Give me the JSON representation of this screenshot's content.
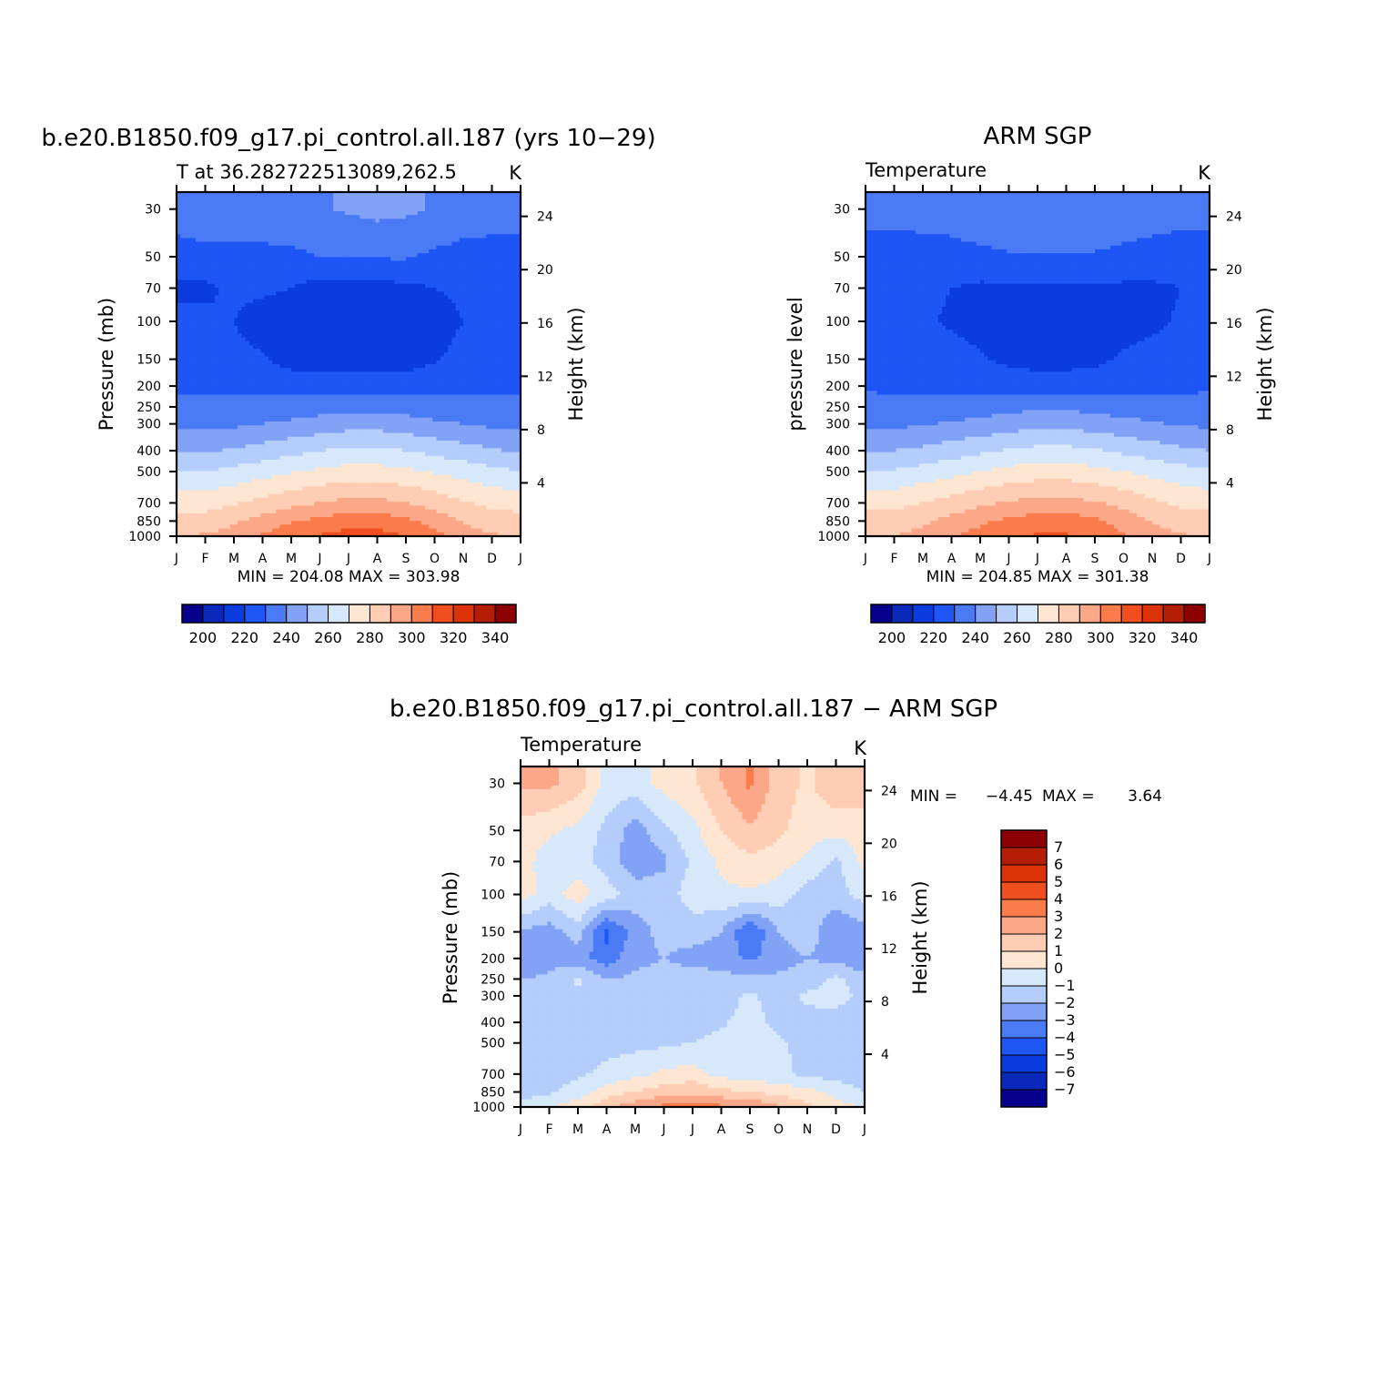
{
  "palette": [
    "#06008c",
    "#0a28b9",
    "#0a3ce0",
    "#1e55f5",
    "#4b7af5",
    "#82a3f5",
    "#b4cdfa",
    "#d7e8fa",
    "#ffe6d2",
    "#ffcdb4",
    "#fca888",
    "#fa7b4c",
    "#f04e1e",
    "#dc3208",
    "#b41e05",
    "#8c0004"
  ],
  "chart_data": [
    {
      "id": "model",
      "type": "heatmap",
      "title": "b.e20.B1850.f09_g17.pi_control.all.187 (yrs 10−29)",
      "subtitle_left": "T at 36.282722513089,262.5",
      "subtitle_right": "K",
      "ylabel": "Pressure (mb)",
      "y2label": "Height (km)",
      "x_ticks": [
        "J",
        "F",
        "M",
        "A",
        "M",
        "J",
        "J",
        "A",
        "S",
        "O",
        "N",
        "D",
        "J"
      ],
      "y_ticks": [
        "30",
        "50",
        "70",
        "100",
        "150",
        "200",
        "250",
        "300",
        "400",
        "500",
        "700",
        "850",
        "1000"
      ],
      "y2_ticks": [
        "24",
        "20",
        "16",
        "12",
        "8",
        "4"
      ],
      "stats": "MIN = 204.08 MAX = 303.98",
      "colorbar_labels": [
        "200",
        "220",
        "240",
        "260",
        "280",
        "300",
        "320",
        "340"
      ],
      "levels": [
        {
          "pressure": 30,
          "values": [
            225,
            225,
            225,
            225,
            227,
            229,
            231,
            233,
            232,
            229,
            225,
            225,
            225
          ]
        },
        {
          "pressure": 50,
          "values": [
            216,
            218,
            218,
            218,
            218,
            220,
            221,
            221,
            221,
            218,
            217,
            216,
            216
          ]
        },
        {
          "pressure": 70,
          "values": [
            208,
            208,
            212,
            212,
            210,
            206,
            206,
            206,
            208,
            210,
            212,
            212,
            212
          ]
        },
        {
          "pressure": 100,
          "values": [
            212,
            212,
            210,
            205,
            203,
            203,
            203,
            203,
            203,
            206,
            210,
            212,
            213
          ]
        },
        {
          "pressure": 150,
          "values": [
            215,
            215,
            213,
            211,
            206,
            205,
            205,
            205,
            205,
            209,
            213,
            215,
            216
          ]
        },
        {
          "pressure": 200,
          "values": [
            218,
            218,
            218,
            217,
            216,
            215,
            215,
            215,
            216,
            217,
            218,
            219,
            219
          ]
        },
        {
          "pressure": 250,
          "values": [
            222,
            222,
            222,
            223,
            224,
            226,
            227,
            227,
            226,
            224,
            223,
            222,
            222
          ]
        },
        {
          "pressure": 300,
          "values": [
            227,
            227,
            228,
            230,
            232,
            234,
            236,
            236,
            234,
            232,
            230,
            228,
            227
          ]
        },
        {
          "pressure": 400,
          "values": [
            239,
            239,
            241,
            244,
            247,
            250,
            252,
            252,
            250,
            247,
            244,
            241,
            239
          ]
        },
        {
          "pressure": 500,
          "values": [
            250,
            250,
            253,
            256,
            259,
            262,
            264,
            264,
            262,
            259,
            256,
            253,
            250
          ]
        },
        {
          "pressure": 700,
          "values": [
            266,
            266,
            269,
            273,
            277,
            280,
            283,
            283,
            280,
            276,
            271,
            267,
            266
          ]
        },
        {
          "pressure": 850,
          "values": [
            274,
            274,
            278,
            284,
            289,
            293,
            296,
            296,
            292,
            286,
            279,
            275,
            274
          ]
        },
        {
          "pressure": 1000,
          "values": [
            280,
            281,
            285,
            291,
            297,
            301,
            304,
            304,
            300,
            293,
            285,
            281,
            280
          ]
        }
      ]
    },
    {
      "id": "obs",
      "type": "heatmap",
      "title": "ARM SGP",
      "subtitle_left": "Temperature",
      "subtitle_right": "K",
      "ylabel": "pressure level",
      "y2label": "Height (km)",
      "x_ticks": [
        "J",
        "F",
        "M",
        "A",
        "M",
        "J",
        "J",
        "A",
        "S",
        "O",
        "N",
        "D",
        "J"
      ],
      "y_ticks": [
        "30",
        "50",
        "70",
        "100",
        "150",
        "200",
        "250",
        "300",
        "400",
        "500",
        "700",
        "850",
        "1000"
      ],
      "y2_ticks": [
        "24",
        "20",
        "16",
        "12",
        "8",
        "4"
      ],
      "stats": "MIN = 204.85 MAX = 301.38",
      "colorbar_labels": [
        "200",
        "220",
        "240",
        "260",
        "280",
        "300",
        "320",
        "340"
      ],
      "levels": [
        {
          "pressure": 30,
          "values": [
            224,
            224,
            224,
            224,
            226,
            228,
            230,
            229,
            228,
            225,
            224,
            224,
            224
          ]
        },
        {
          "pressure": 50,
          "values": [
            215,
            215,
            216,
            217,
            218,
            219,
            219,
            219,
            219,
            218,
            217,
            215,
            215
          ]
        },
        {
          "pressure": 70,
          "values": [
            210,
            210,
            212,
            210,
            208,
            208,
            208,
            208,
            208,
            208,
            208,
            210,
            212
          ]
        },
        {
          "pressure": 100,
          "values": [
            213,
            212,
            211,
            209,
            207,
            206,
            205,
            205,
            206,
            207,
            208,
            211,
            213
          ]
        },
        {
          "pressure": 150,
          "values": [
            216,
            215,
            214,
            213,
            211,
            208,
            207,
            207,
            208,
            211,
            213,
            215,
            216
          ]
        },
        {
          "pressure": 200,
          "values": [
            219,
            218,
            218,
            217,
            216,
            215,
            214,
            214,
            215,
            216,
            217,
            218,
            219
          ]
        },
        {
          "pressure": 250,
          "values": [
            223,
            223,
            223,
            224,
            225,
            227,
            228,
            228,
            227,
            225,
            224,
            223,
            223
          ]
        },
        {
          "pressure": 300,
          "values": [
            228,
            228,
            229,
            231,
            233,
            235,
            237,
            237,
            235,
            233,
            231,
            229,
            228
          ]
        },
        {
          "pressure": 400,
          "values": [
            240,
            240,
            242,
            245,
            248,
            251,
            253,
            253,
            251,
            248,
            245,
            242,
            240
          ]
        },
        {
          "pressure": 500,
          "values": [
            251,
            251,
            254,
            257,
            260,
            263,
            265,
            265,
            263,
            260,
            257,
            254,
            251
          ]
        },
        {
          "pressure": 700,
          "values": [
            267,
            267,
            270,
            274,
            278,
            281,
            283,
            283,
            281,
            277,
            272,
            268,
            267
          ]
        },
        {
          "pressure": 850,
          "values": [
            274,
            274,
            278,
            283,
            288,
            292,
            295,
            295,
            292,
            286,
            279,
            275,
            274
          ]
        },
        {
          "pressure": 1000,
          "values": [
            280,
            280,
            284,
            289,
            294,
            298,
            301,
            301,
            298,
            291,
            284,
            281,
            280
          ]
        }
      ]
    },
    {
      "id": "diff",
      "type": "heatmap",
      "title": "b.e20.B1850.f09_g17.pi_control.all.187 − ARM SGP",
      "subtitle_left": "Temperature",
      "subtitle_right": "K",
      "ylabel": "Pressure (mb)",
      "y2label": "Height (km)",
      "x_ticks": [
        "J",
        "F",
        "M",
        "A",
        "M",
        "J",
        "J",
        "A",
        "S",
        "O",
        "N",
        "D",
        "J"
      ],
      "y_ticks": [
        "30",
        "50",
        "70",
        "100",
        "150",
        "200",
        "250",
        "300",
        "400",
        "500",
        "700",
        "850",
        "1000"
      ],
      "y2_ticks": [
        "24",
        "20",
        "16",
        "12",
        "8",
        "4"
      ],
      "stats_min_label": "MIN =",
      "stats_min": "−4.45",
      "stats_max_label": "MAX =",
      "stats_max": "3.64",
      "colorbar_labels": [
        "7",
        "6",
        "5",
        "4",
        "3",
        "2",
        "1",
        "0",
        "−1",
        "−2",
        "−3",
        "−4",
        "−5",
        "−6",
        "−7"
      ],
      "levels": [
        {
          "pressure": 30,
          "values": [
            2.2,
            2.2,
            1.5,
            -0.3,
            -0.5,
            0.4,
            0.8,
            2.0,
            3.2,
            1.5,
            0.8,
            1.8,
            1.5
          ]
        },
        {
          "pressure": 50,
          "values": [
            0.5,
            0.2,
            -0.3,
            -1.3,
            -2.5,
            -1.3,
            -0.3,
            1.0,
            1.8,
            1.2,
            0.5,
            0.3,
            0.5
          ]
        },
        {
          "pressure": 70,
          "values": [
            0.5,
            -0.6,
            -0.5,
            -1.5,
            -2.6,
            -2.2,
            -0.8,
            0.2,
            0.8,
            0.5,
            -0.3,
            -1.2,
            0.3
          ]
        },
        {
          "pressure": 100,
          "values": [
            0.5,
            -0.5,
            0.5,
            -0.5,
            -1.5,
            -1.5,
            -0.5,
            -0.2,
            -0.2,
            -0.5,
            -1.5,
            -1.5,
            -0.5
          ]
        },
        {
          "pressure": 150,
          "values": [
            -2.2,
            -2.5,
            -1.5,
            -4.3,
            -2.5,
            -1.6,
            -1.5,
            -2.0,
            -4.0,
            -2.0,
            -1.5,
            -2.8,
            -2.5
          ]
        },
        {
          "pressure": 200,
          "values": [
            -3.0,
            -2.4,
            -2.6,
            -3.6,
            -2.3,
            -2.0,
            -2.4,
            -2.5,
            -3.2,
            -2.4,
            -2.0,
            -2.3,
            -3.0
          ]
        },
        {
          "pressure": 250,
          "values": [
            -2.0,
            -1.8,
            -0.8,
            -2.0,
            -1.8,
            -1.6,
            -1.5,
            -1.6,
            -1.8,
            -1.8,
            -1.5,
            -0.8,
            -1.5
          ]
        },
        {
          "pressure": 300,
          "values": [
            -1.6,
            -1.5,
            -1.2,
            -1.8,
            -1.6,
            -1.5,
            -1.5,
            -1.4,
            -0.8,
            -1.5,
            -0.8,
            -0.7,
            -1.2
          ]
        },
        {
          "pressure": 400,
          "values": [
            -1.5,
            -1.5,
            -1.5,
            -1.5,
            -1.4,
            -1.3,
            -1.2,
            -1.1,
            -0.7,
            -1.2,
            -1.3,
            -1.4,
            -1.5
          ]
        },
        {
          "pressure": 500,
          "values": [
            -1.5,
            -1.5,
            -1.4,
            -1.4,
            -1.3,
            -1.2,
            -1.0,
            -0.8,
            -0.6,
            -0.9,
            -1.2,
            -1.4,
            -1.5
          ]
        },
        {
          "pressure": 700,
          "values": [
            -1.8,
            -1.4,
            -1.2,
            -0.7,
            -0.3,
            0.2,
            0.4,
            -0.4,
            -0.6,
            -0.8,
            -1.2,
            -1.4,
            -1.6
          ]
        },
        {
          "pressure": 850,
          "values": [
            -1.5,
            -1.2,
            -0.5,
            0.5,
            1.0,
            1.5,
            1.8,
            1.3,
            1.0,
            0.6,
            0.3,
            -0.3,
            -1.0
          ]
        },
        {
          "pressure": 1000,
          "values": [
            -0.5,
            0.0,
            0.5,
            1.8,
            2.6,
            3.3,
            3.6,
            3.2,
            3.0,
            2.2,
            1.2,
            0.3,
            0.0
          ]
        }
      ]
    }
  ]
}
